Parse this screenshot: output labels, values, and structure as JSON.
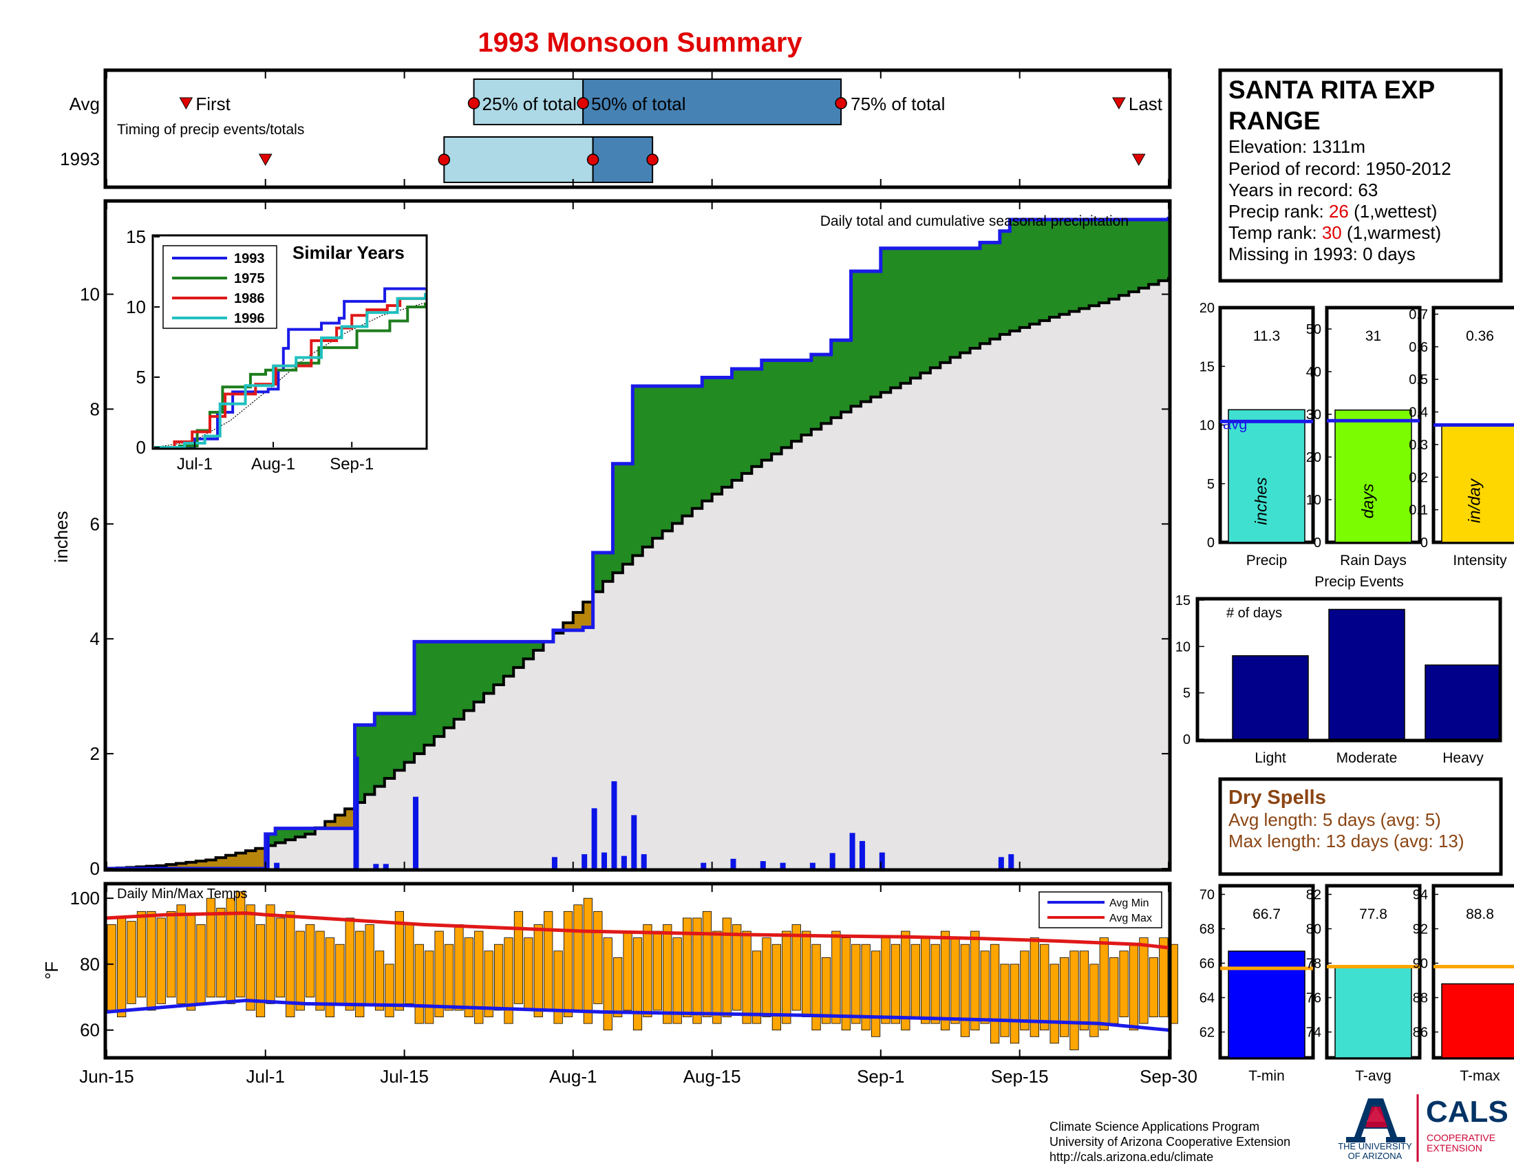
{
  "title": "1993 Monsoon Summary",
  "timing": {
    "row_labels": [
      "Avg",
      "1993"
    ],
    "caption": "Timing of precip events/totals",
    "avg_first_label": "First",
    "avg_last_label": "Last",
    "pct25_label": "25% of total",
    "pct50_label": "50% of total",
    "pct75_label": "75% of total",
    "avg": {
      "first": 8,
      "p25": 37,
      "p50": 48,
      "p75": 74,
      "last": 102
    },
    "year": {
      "first": 16,
      "p25": 34,
      "p50": 49,
      "p75": 55,
      "last": 104
    },
    "colors": {
      "light": "#add8e6",
      "dark": "#4682b4",
      "marker": "#e00000"
    }
  },
  "x_axis": {
    "ticks": [
      {
        "day": 0,
        "label": "Jun-15"
      },
      {
        "day": 16,
        "label": "Jul-1"
      },
      {
        "day": 30,
        "label": "Jul-15"
      },
      {
        "day": 47,
        "label": "Aug-1"
      },
      {
        "day": 61,
        "label": "Aug-15"
      },
      {
        "day": 78,
        "label": "Sep-1"
      },
      {
        "day": 92,
        "label": "Sep-15"
      },
      {
        "day": 107,
        "label": "Sep-30"
      }
    ]
  },
  "precip_panel": {
    "caption": "Daily total and cumulative seasonal precipitation",
    "ylabel": "inches"
  },
  "temp_panel": {
    "caption": "Daily Min/Max Temps",
    "ylabel": "°F",
    "legend": {
      "min": "Avg Min",
      "max": "Avg Max"
    }
  },
  "station": {
    "name_line1": "SANTA RITA EXP",
    "name_line2": "RANGE",
    "elevation": "Elevation: 1311m",
    "period": "Period of record: 1950-2012",
    "years": "Years in record: 63",
    "precip_rank_prefix": "Precip rank: ",
    "precip_rank": "26",
    "precip_rank_suffix": " (1,wettest)",
    "temp_rank_prefix": "Temp rank: ",
    "temp_rank": "30",
    "temp_rank_suffix": " (1,warmest)",
    "missing": "Missing in 1993: 0 days"
  },
  "stats": {
    "avg_label": "avg",
    "precip": {
      "label": "Precip",
      "unit": "inches",
      "value_label": "11.3"
    },
    "rain_days": {
      "label": "Rain Days",
      "unit": "days",
      "value_label": "31"
    },
    "intensity": {
      "label": "Intensity",
      "unit": "in/day",
      "value_label": "0.36"
    }
  },
  "events": {
    "title": "Precip Events",
    "caption": "# of days"
  },
  "dry_spells": {
    "title": "Dry Spells",
    "avg_length": "Avg length: 5 days (avg: 5)",
    "max_length": "Max length: 13 days (avg: 13)"
  },
  "temps": {
    "tmin": {
      "label": "T-min",
      "value_label": "66.7"
    },
    "tavg": {
      "label": "T-avg",
      "value_label": "77.8"
    },
    "tmax": {
      "label": "T-max",
      "value_label": "88.8"
    }
  },
  "footer": {
    "line1": "Climate Science Applications Program",
    "line2": "University of Arizona Cooperative Extension",
    "line3": "http://cals.arizona.edu/climate",
    "ua_line1": "THE UNIVERSITY",
    "ua_line2": "OF ARIZONA",
    "cals": "CALS",
    "cals_line1": "COOPERATIVE",
    "cals_line2": "EXTENSION"
  },
  "chart_data": [
    {
      "type": "area",
      "name": "main-precip",
      "xlabel": "",
      "ylabel": "inches",
      "x_units": "days since Jun-15",
      "ylim": [
        0,
        11.6
      ],
      "yticks": [
        0,
        2,
        4,
        6,
        8,
        10
      ],
      "daily_precip": [
        [
          16,
          0.6
        ],
        [
          17,
          0.1
        ],
        [
          25,
          1.95
        ],
        [
          27,
          0.08
        ],
        [
          28,
          0.08
        ],
        [
          31,
          1.25
        ],
        [
          45,
          0.2
        ],
        [
          48,
          0.25
        ],
        [
          49,
          1.05
        ],
        [
          50,
          0.28
        ],
        [
          51,
          1.52
        ],
        [
          52,
          0.22
        ],
        [
          53,
          0.93
        ],
        [
          54,
          0.25
        ],
        [
          60,
          0.1
        ],
        [
          63,
          0.17
        ],
        [
          66,
          0.13
        ],
        [
          68,
          0.1
        ],
        [
          71,
          0.1
        ],
        [
          73,
          0.27
        ],
        [
          75,
          0.62
        ],
        [
          76,
          0.48
        ],
        [
          78,
          0.28
        ],
        [
          90,
          0.2
        ],
        [
          91,
          0.25
        ]
      ],
      "cumulative_1993": [
        [
          0,
          0
        ],
        [
          16,
          0.6
        ],
        [
          17,
          0.7
        ],
        [
          25,
          2.5
        ],
        [
          27,
          2.7
        ],
        [
          31,
          3.95
        ],
        [
          45,
          4.15
        ],
        [
          48,
          4.2
        ],
        [
          49,
          5.5
        ],
        [
          51,
          7.05
        ],
        [
          53,
          8.4
        ],
        [
          60,
          8.55
        ],
        [
          63,
          8.7
        ],
        [
          66,
          8.85
        ],
        [
          71,
          8.95
        ],
        [
          73,
          9.2
        ],
        [
          75,
          10.4
        ],
        [
          78,
          10.8
        ],
        [
          88,
          10.9
        ],
        [
          90,
          11.1
        ],
        [
          91,
          11.3
        ],
        [
          107,
          11.35
        ]
      ],
      "cumulative_avg": [
        [
          0,
          0
        ],
        [
          5,
          0.05
        ],
        [
          10,
          0.15
        ],
        [
          15,
          0.35
        ],
        [
          20,
          0.6
        ],
        [
          25,
          1.15
        ],
        [
          30,
          1.85
        ],
        [
          35,
          2.6
        ],
        [
          40,
          3.35
        ],
        [
          45,
          4.1
        ],
        [
          50,
          5.0
        ],
        [
          55,
          5.75
        ],
        [
          60,
          6.4
        ],
        [
          65,
          7.0
        ],
        [
          70,
          7.55
        ],
        [
          75,
          8.05
        ],
        [
          80,
          8.45
        ],
        [
          85,
          8.9
        ],
        [
          90,
          9.3
        ],
        [
          95,
          9.6
        ],
        [
          100,
          9.85
        ],
        [
          107,
          10.3
        ]
      ],
      "colors": {
        "above": "#228b22",
        "below": "#b8860b",
        "avg_fill": "#e6e4e4",
        "line": "#1a1ae8",
        "bar": "#0a14e6"
      }
    },
    {
      "type": "line",
      "title": "Similar Years",
      "ylim": [
        0,
        15
      ],
      "yticks": [
        0,
        5,
        10,
        15
      ],
      "xticks": [
        {
          "day": 16,
          "label": "Jul-1"
        },
        {
          "day": 47,
          "label": "Aug-1"
        },
        {
          "day": 78,
          "label": "Sep-1"
        }
      ],
      "series": [
        {
          "name": "1993",
          "color": "#1a1ae8",
          "points": [
            [
              0,
              0
            ],
            [
              16,
              0.6
            ],
            [
              25,
              2.5
            ],
            [
              31,
              3.95
            ],
            [
              45,
              4.15
            ],
            [
              49,
              5.5
            ],
            [
              51,
              7.05
            ],
            [
              53,
              8.4
            ],
            [
              66,
              8.85
            ],
            [
              73,
              9.2
            ],
            [
              75,
              10.4
            ],
            [
              91,
              11.3
            ],
            [
              107,
              11.35
            ]
          ]
        },
        {
          "name": "1975",
          "color": "#1e7d1e",
          "points": [
            [
              0,
              0
            ],
            [
              10,
              0.1
            ],
            [
              17,
              1.2
            ],
            [
              22,
              2.5
            ],
            [
              27,
              4.3
            ],
            [
              38,
              5.2
            ],
            [
              44,
              5.5
            ],
            [
              56,
              6.0
            ],
            [
              65,
              7.1
            ],
            [
              80,
              8.3
            ],
            [
              93,
              9.0
            ],
            [
              100,
              10.0
            ],
            [
              107,
              10.3
            ]
          ]
        },
        {
          "name": "1986",
          "color": "#e01818",
          "points": [
            [
              0,
              0
            ],
            [
              8,
              0.4
            ],
            [
              15,
              1.1
            ],
            [
              22,
              2.2
            ],
            [
              28,
              3.8
            ],
            [
              40,
              4.5
            ],
            [
              48,
              5.8
            ],
            [
              62,
              7.6
            ],
            [
              72,
              8.5
            ],
            [
              78,
              9.4
            ],
            [
              84,
              9.8
            ],
            [
              92,
              10.1
            ],
            [
              97,
              10.6
            ],
            [
              107,
              10.8
            ]
          ]
        },
        {
          "name": "1996",
          "color": "#20c0c0",
          "points": [
            [
              0,
              0
            ],
            [
              12,
              0.3
            ],
            [
              20,
              0.8
            ],
            [
              26,
              3.1
            ],
            [
              36,
              4.4
            ],
            [
              47,
              5.8
            ],
            [
              56,
              6.4
            ],
            [
              66,
              7.8
            ],
            [
              74,
              8.6
            ],
            [
              84,
              9.6
            ],
            [
              96,
              10.6
            ],
            [
              107,
              11.0
            ]
          ]
        }
      ],
      "avg_points": [
        [
          0,
          0
        ],
        [
          15,
          0.4
        ],
        [
          30,
          1.9
        ],
        [
          45,
          4.1
        ],
        [
          60,
          6.4
        ],
        [
          75,
          8.1
        ],
        [
          90,
          9.4
        ],
        [
          107,
          10.3
        ]
      ]
    },
    {
      "type": "bar",
      "name": "daily-temps",
      "ylabel": "°F",
      "ylim": [
        52,
        104
      ],
      "yticks": [
        60,
        80,
        100
      ],
      "tmax": [
        92,
        94,
        93,
        96,
        96,
        94,
        96,
        98,
        95,
        92,
        100,
        97,
        100,
        102,
        98,
        92,
        98,
        94,
        96,
        90,
        92,
        90,
        88,
        86,
        94,
        90,
        92,
        84,
        80,
        96,
        92,
        86,
        84,
        90,
        86,
        92,
        88,
        90,
        84,
        86,
        88,
        96,
        88,
        92,
        96,
        84,
        96,
        98,
        100,
        96,
        88,
        82,
        90,
        88,
        92,
        90,
        92,
        88,
        94,
        94,
        96,
        90,
        94,
        92,
        90,
        84,
        88,
        86,
        90,
        92,
        90,
        86,
        82,
        90,
        88,
        86,
        86,
        84,
        88,
        86,
        90,
        86,
        88,
        86,
        90,
        88,
        86,
        90,
        84,
        86,
        80,
        80,
        84,
        88,
        86,
        80,
        82,
        84,
        84,
        80,
        88,
        82,
        84,
        86,
        88,
        82,
        88,
        86
      ],
      "tmin": [
        66,
        64,
        68,
        70,
        66,
        68,
        70,
        68,
        66,
        68,
        70,
        70,
        68,
        70,
        66,
        64,
        68,
        70,
        64,
        66,
        70,
        66,
        64,
        68,
        66,
        64,
        68,
        66,
        64,
        66,
        68,
        62,
        62,
        64,
        66,
        66,
        64,
        62,
        64,
        66,
        62,
        68,
        66,
        64,
        66,
        62,
        64,
        66,
        62,
        68,
        60,
        64,
        66,
        60,
        64,
        66,
        62,
        62,
        64,
        62,
        64,
        62,
        64,
        66,
        62,
        62,
        64,
        60,
        62,
        66,
        64,
        60,
        62,
        62,
        60,
        62,
        60,
        58,
        62,
        62,
        60,
        64,
        62,
        62,
        60,
        62,
        58,
        60,
        62,
        56,
        58,
        56,
        60,
        58,
        60,
        56,
        58,
        54,
        60,
        58,
        60,
        62,
        64,
        60,
        62,
        64,
        64,
        62
      ],
      "avg_max": [
        [
          0,
          94
        ],
        [
          6,
          95
        ],
        [
          14,
          95.5
        ],
        [
          16,
          95
        ],
        [
          24,
          93.5
        ],
        [
          32,
          92
        ],
        [
          40,
          91
        ],
        [
          48,
          90
        ],
        [
          56,
          89.5
        ],
        [
          64,
          89
        ],
        [
          72,
          88.6
        ],
        [
          80,
          88.3
        ],
        [
          88,
          87.8
        ],
        [
          96,
          87
        ],
        [
          104,
          86
        ],
        [
          107,
          85
        ]
      ],
      "avg_min": [
        [
          0,
          65.5
        ],
        [
          6,
          67
        ],
        [
          14,
          69
        ],
        [
          20,
          68
        ],
        [
          30,
          67.5
        ],
        [
          40,
          66.5
        ],
        [
          50,
          65.5
        ],
        [
          60,
          65
        ],
        [
          70,
          64.5
        ],
        [
          80,
          63.8
        ],
        [
          90,
          63
        ],
        [
          100,
          62
        ],
        [
          107,
          60
        ]
      ],
      "colors": {
        "bar": "#ffa500",
        "min": "#1a1ae8",
        "max": "#e01818"
      }
    },
    {
      "type": "bar",
      "name": "precip-total",
      "categories": [
        "Precip"
      ],
      "values": [
        11.3
      ],
      "avg": 10.3,
      "ylim": [
        0,
        20
      ],
      "yticks": [
        0,
        5,
        10,
        15,
        20
      ],
      "color": "#40e0d0"
    },
    {
      "type": "bar",
      "name": "rain-days",
      "categories": [
        "Rain Days"
      ],
      "values": [
        31
      ],
      "avg": 28.5,
      "ylim": [
        0,
        55
      ],
      "yticks": [
        0,
        10,
        20,
        30,
        40,
        50
      ],
      "color": "#7cfc00"
    },
    {
      "type": "bar",
      "name": "intensity",
      "categories": [
        "Intensity"
      ],
      "values": [
        0.36
      ],
      "avg": 0.36,
      "ylim": [
        0,
        0.72
      ],
      "yticks": [
        0,
        0.1,
        0.2,
        0.3,
        0.4,
        0.5,
        0.6,
        0.7
      ],
      "color": "#ffd700"
    },
    {
      "type": "bar",
      "name": "precip-events",
      "categories": [
        "Light",
        "Moderate",
        "Heavy"
      ],
      "values": [
        9,
        14,
        8
      ],
      "ylim": [
        0,
        15
      ],
      "yticks": [
        0,
        5,
        10,
        15
      ],
      "color": "#00008b"
    },
    {
      "type": "bar",
      "name": "t-min",
      "categories": [
        "T-min"
      ],
      "values": [
        66.7
      ],
      "avg": 65.7,
      "ylim": [
        60.5,
        70.5
      ],
      "yticks": [
        62,
        64,
        66,
        68,
        70
      ],
      "color": "#0000ff"
    },
    {
      "type": "bar",
      "name": "t-avg",
      "categories": [
        "T-avg"
      ],
      "values": [
        77.8
      ],
      "avg": 77.8,
      "ylim": [
        72.5,
        82.5
      ],
      "yticks": [
        74,
        76,
        78,
        80,
        82
      ],
      "color": "#40e0d0"
    },
    {
      "type": "bar",
      "name": "t-max",
      "categories": [
        "T-max"
      ],
      "values": [
        88.8
      ],
      "avg": 89.8,
      "ylim": [
        84.5,
        94.5
      ],
      "yticks": [
        86,
        88,
        90,
        92,
        94
      ],
      "color": "#ff0000"
    }
  ]
}
